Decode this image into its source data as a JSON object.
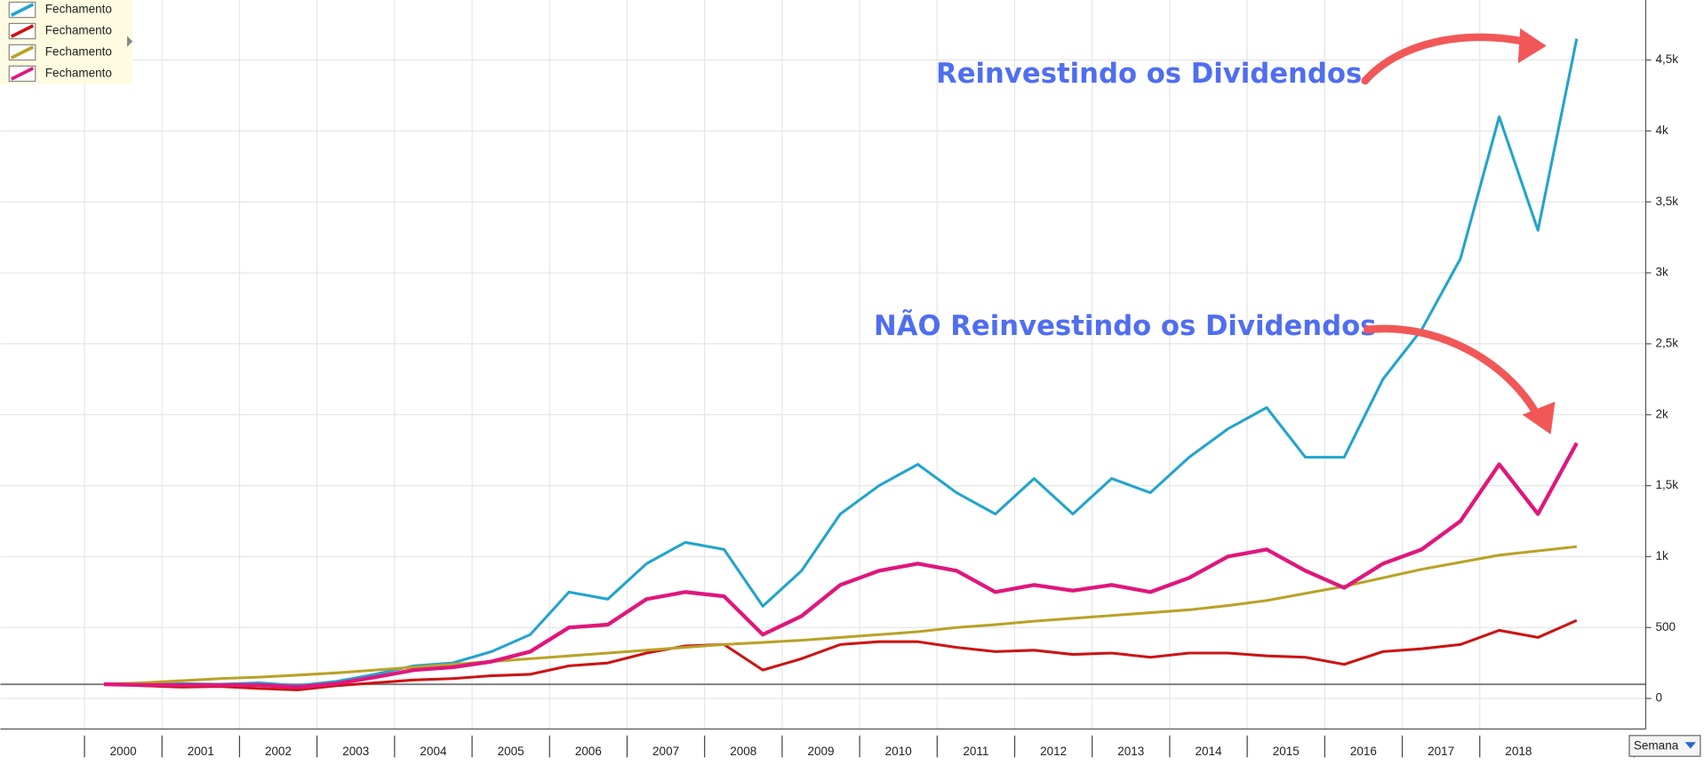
{
  "chart_data": {
    "type": "line",
    "categories": [
      "2000",
      null,
      "2001",
      null,
      "2002",
      null,
      "2003",
      null,
      "2004",
      null,
      "2005",
      null,
      "2006",
      null,
      "2007",
      null,
      "2008",
      null,
      "2009",
      null,
      "2010",
      null,
      "2011",
      null,
      "2012",
      null,
      "2013",
      null,
      "2014",
      null,
      "2015",
      null,
      "2016",
      null,
      "2017",
      null,
      "2018",
      null,
      null
    ],
    "series": [
      {
        "name": "Fechamento",
        "color": "#22a4cc",
        "values": [
          100,
          95,
          105,
          100,
          110,
          90,
          120,
          170,
          230,
          250,
          330,
          450,
          750,
          700,
          950,
          1100,
          1050,
          650,
          900,
          1300,
          1500,
          1650,
          1450,
          1300,
          1550,
          1300,
          1550,
          1450,
          1700,
          1900,
          2050,
          1700,
          1700,
          2250,
          2600,
          3100,
          4100,
          3300,
          4650
        ]
      },
      {
        "name": "Fechamento",
        "color": "#cc1414",
        "values": [
          100,
          90,
          80,
          85,
          70,
          60,
          90,
          110,
          130,
          140,
          160,
          170,
          230,
          250,
          320,
          370,
          380,
          200,
          280,
          380,
          400,
          400,
          360,
          330,
          340,
          310,
          320,
          290,
          320,
          320,
          300,
          290,
          240,
          330,
          350,
          380,
          480,
          430,
          550
        ]
      },
      {
        "name": "Fechamento",
        "color": "#b9a228",
        "values": [
          100,
          110,
          125,
          140,
          150,
          165,
          180,
          200,
          220,
          240,
          260,
          280,
          300,
          320,
          340,
          360,
          380,
          395,
          410,
          430,
          450,
          470,
          500,
          520,
          545,
          565,
          585,
          605,
          625,
          655,
          690,
          740,
          790,
          850,
          910,
          960,
          1010,
          1040,
          1070
        ]
      },
      {
        "name": "Fechamento",
        "color": "#e0177c",
        "values": [
          100,
          95,
          95,
          95,
          95,
          80,
          105,
          150,
          200,
          220,
          260,
          330,
          500,
          520,
          700,
          750,
          720,
          450,
          580,
          800,
          900,
          950,
          900,
          750,
          800,
          760,
          800,
          750,
          850,
          1000,
          1050,
          900,
          780,
          950,
          1050,
          1250,
          1650,
          1300,
          1800
        ]
      }
    ],
    "ylim": [
      -215,
      4923
    ],
    "yticks": [
      0,
      500,
      {
        "value": 1000,
        "label": "1k"
      },
      {
        "value": 1500,
        "label": "1,5k"
      },
      {
        "value": 2000,
        "label": "2k"
      },
      {
        "value": 2500,
        "label": "2,5k"
      },
      {
        "value": 3000,
        "label": "3k"
      },
      {
        "value": 3500,
        "label": "3,5k"
      },
      {
        "value": 4000,
        "label": "4k"
      },
      {
        "value": 4500,
        "label": "4,5k"
      }
    ],
    "baseline": 100,
    "grid": true,
    "legend": "upper left",
    "annotations": [
      "Reinvestindo os Dividendos",
      "NÃO Reinvestindo os Dividendos"
    ],
    "period": "Semana"
  }
}
